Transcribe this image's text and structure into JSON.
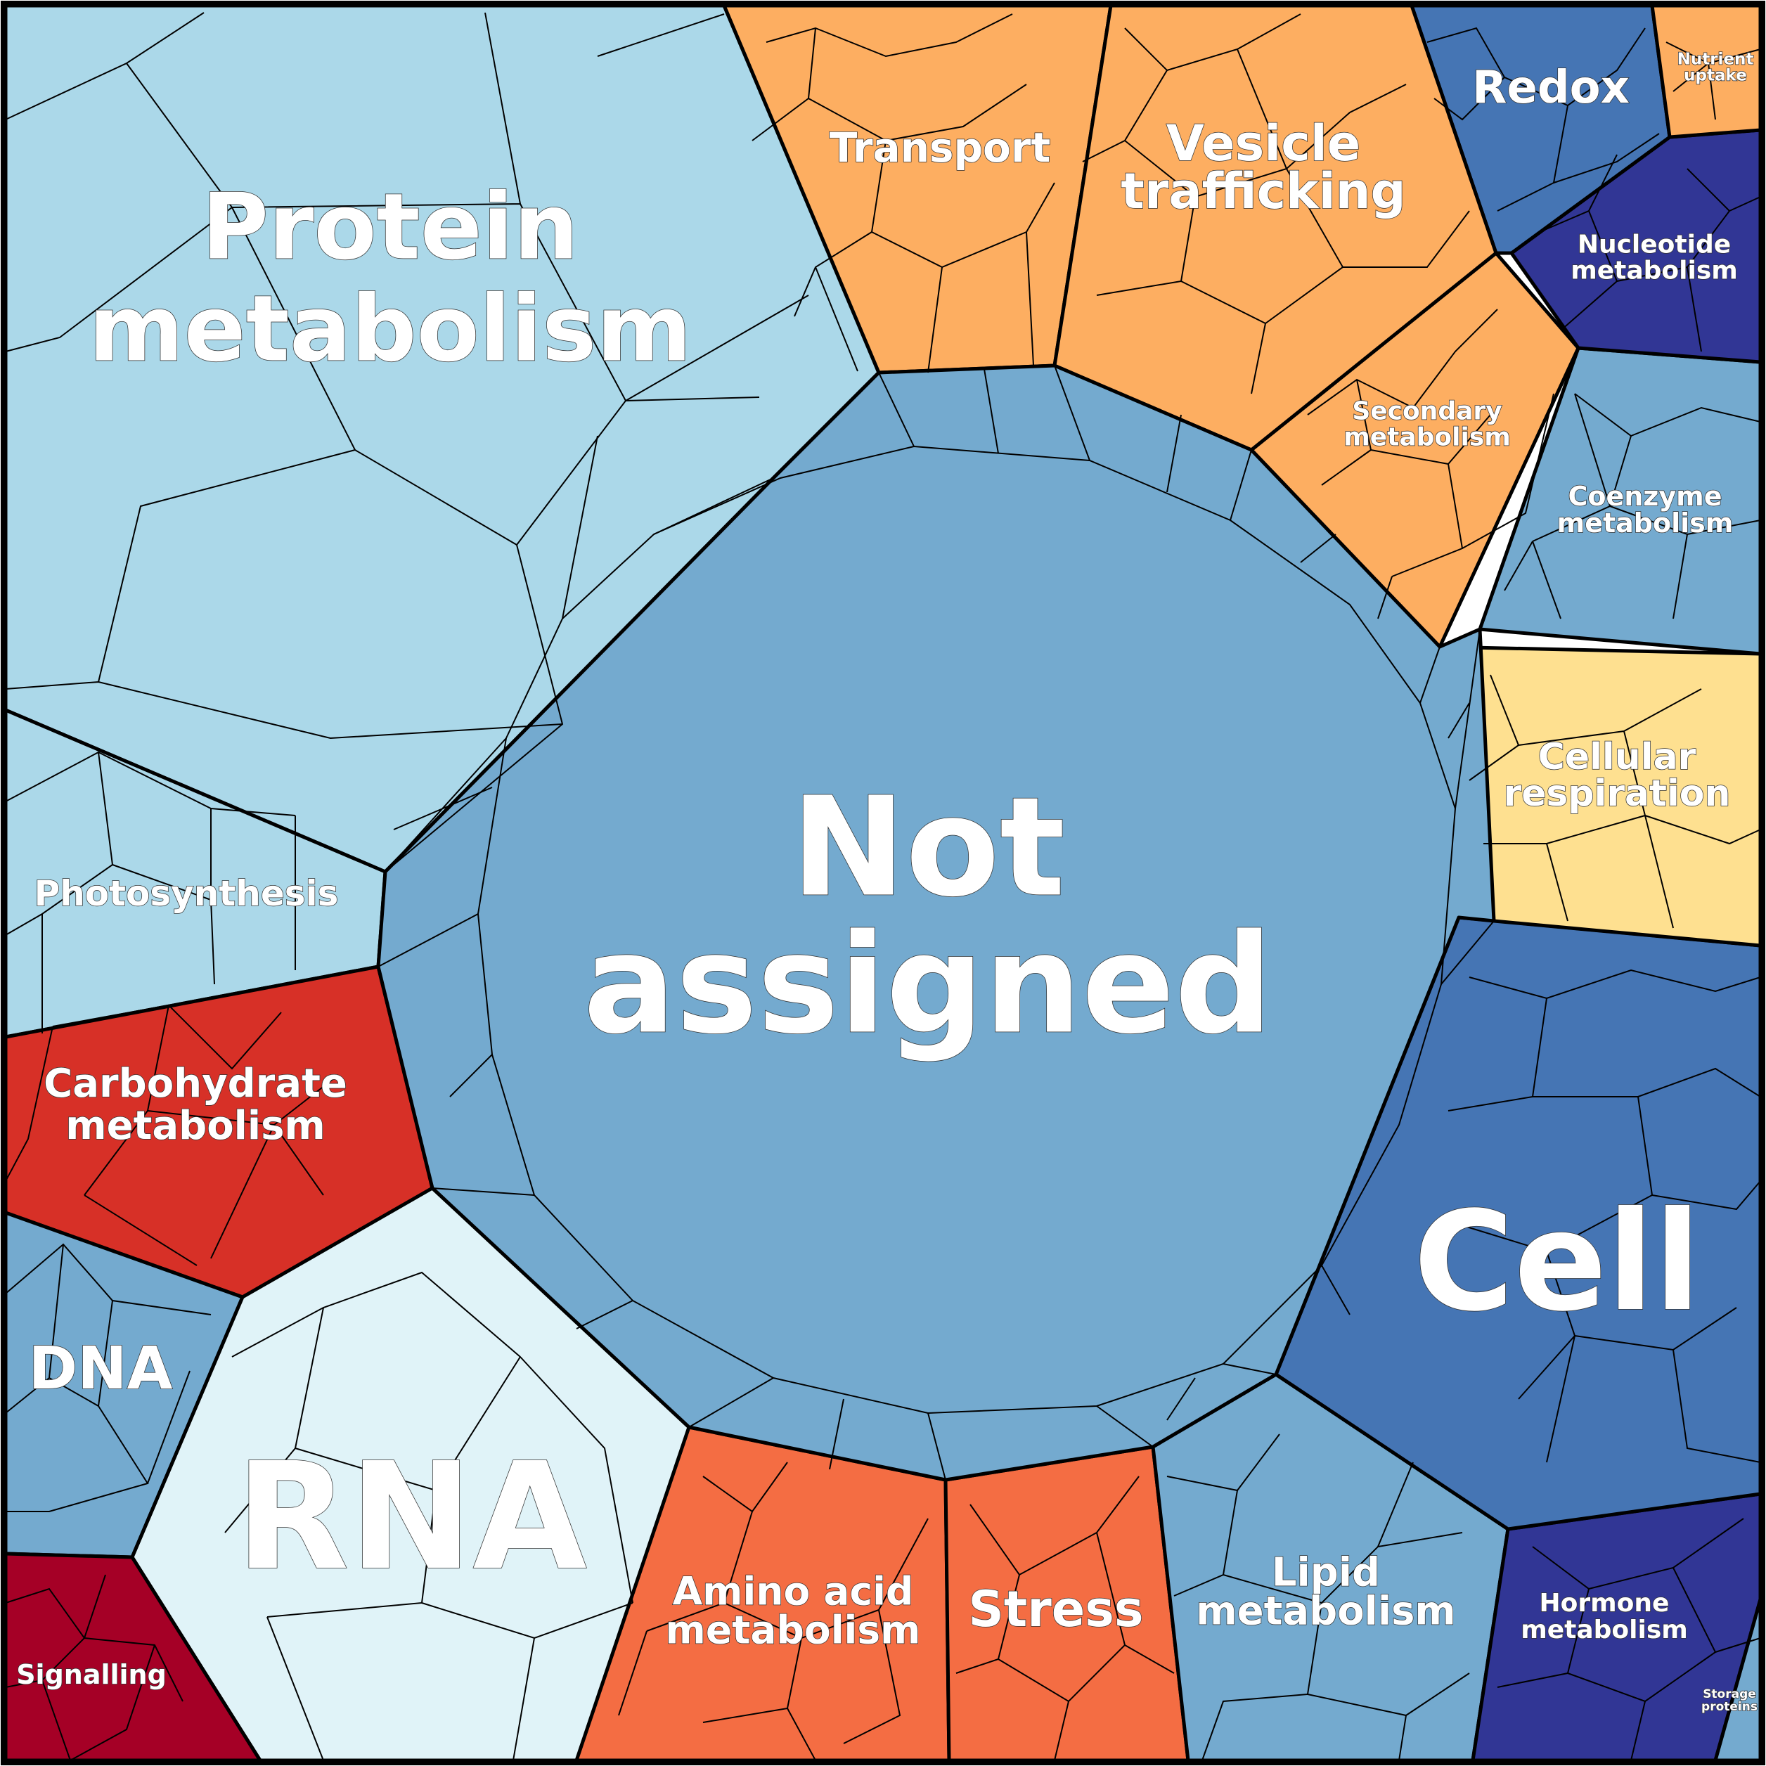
{
  "categories": [
    {
      "id": "not-assigned",
      "lines": [
        "Not",
        "assigned"
      ],
      "color": "#74aacf"
    },
    {
      "id": "protein-metabolism",
      "lines": [
        "Protein",
        "metabolism"
      ],
      "color": "#abd8e9"
    },
    {
      "id": "photosynthesis",
      "lines": [
        "Photosynthesis"
      ],
      "color": "#abd8e9"
    },
    {
      "id": "carbohydrate-metabolism",
      "lines": [
        "Carbohydrate",
        "metabolism"
      ],
      "color": "#d73027"
    },
    {
      "id": "dna",
      "lines": [
        "DNA"
      ],
      "color": "#74aacf"
    },
    {
      "id": "rna",
      "lines": [
        "RNA"
      ],
      "color": "#e0f3f8"
    },
    {
      "id": "signalling",
      "lines": [
        "Signalling"
      ],
      "color": "#a50026"
    },
    {
      "id": "amino-acid-metabolism",
      "lines": [
        "Amino acid",
        "metabolism"
      ],
      "color": "#f46d43"
    },
    {
      "id": "stress",
      "lines": [
        "Stress"
      ],
      "color": "#f46d43"
    },
    {
      "id": "lipid-metabolism",
      "lines": [
        "Lipid",
        "metabolism"
      ],
      "color": "#74aacf"
    },
    {
      "id": "hormone-metabolism",
      "lines": [
        "Hormone",
        "metabolism"
      ],
      "color": "#313695"
    },
    {
      "id": "storage-proteins",
      "lines": [
        "Storage",
        "proteins"
      ],
      "color": "#74aacf"
    },
    {
      "id": "cell",
      "lines": [
        "Cell"
      ],
      "color": "#4575b4"
    },
    {
      "id": "cellular-respiration",
      "lines": [
        "Cellular",
        "respiration"
      ],
      "color": "#fee090"
    },
    {
      "id": "coenzyme-metabolism",
      "lines": [
        "Coenzyme",
        "metabolism"
      ],
      "color": "#74aacf"
    },
    {
      "id": "secondary-metabolism",
      "lines": [
        "Secondary",
        "metabolism"
      ],
      "color": "#fdae61"
    },
    {
      "id": "nucleotide-metabolism",
      "lines": [
        "Nucleotide",
        "metabolism"
      ],
      "color": "#313695"
    },
    {
      "id": "redox",
      "lines": [
        "Redox"
      ],
      "color": "#4575b4"
    },
    {
      "id": "nutrient-uptake",
      "lines": [
        "Nutrient",
        "uptake"
      ],
      "color": "#fdae61"
    },
    {
      "id": "transport",
      "lines": [
        "Transport"
      ],
      "color": "#fdae61"
    },
    {
      "id": "vesicle-trafficking",
      "lines": [
        "Vesicle",
        "trafficking"
      ],
      "color": "#fdae61"
    }
  ]
}
